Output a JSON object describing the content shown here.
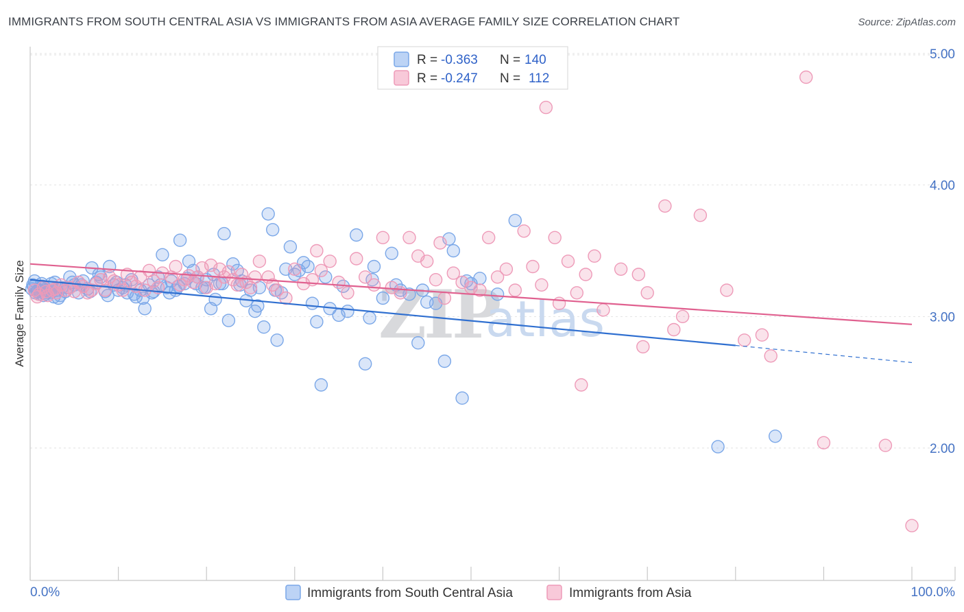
{
  "header": {
    "title": "IMMIGRANTS FROM SOUTH CENTRAL ASIA VS IMMIGRANTS FROM ASIA AVERAGE FAMILY SIZE CORRELATION CHART",
    "source": "Source: ZipAtlas.com"
  },
  "watermark": {
    "zip": "ZIP",
    "atlas": "atlas"
  },
  "chart_data": {
    "type": "scatter",
    "ylabel": "Average Family Size",
    "x_tick_labels": [
      "0.0%",
      "100.0%"
    ],
    "y_tick_labels": [
      "2.00",
      "3.00",
      "4.00",
      "5.00"
    ],
    "y_ticks": [
      2,
      3,
      4,
      5
    ],
    "xlim": [
      0,
      100
    ],
    "ylim": [
      1.0,
      5.1
    ],
    "grid": true,
    "legend_position": "top-center",
    "series": [
      {
        "name": "Immigrants from South Central Asia",
        "color": "#7aa7e8",
        "line_color": "#2f6fd0",
        "R": "-0.363",
        "N": "140",
        "trend": {
          "x0": 0,
          "y0": 3.28,
          "x1": 80,
          "y1": 2.78,
          "dash_to_x": 100,
          "dash_to_y": 2.65
        },
        "points": [
          [
            0.3,
            3.24
          ],
          [
            0.6,
            3.18
          ],
          [
            0.9,
            3.2
          ],
          [
            1.2,
            3.22
          ],
          [
            1.5,
            3.16
          ],
          [
            1.8,
            3.21
          ],
          [
            2.1,
            3.19
          ],
          [
            2.4,
            3.25
          ],
          [
            2.7,
            3.15
          ],
          [
            3.0,
            3.2
          ],
          [
            0.5,
            3.27
          ],
          [
            1.0,
            3.17
          ],
          [
            1.4,
            3.23
          ],
          [
            1.9,
            3.2
          ],
          [
            2.3,
            3.18
          ],
          [
            2.8,
            3.26
          ],
          [
            3.2,
            3.14
          ],
          [
            3.6,
            3.22
          ],
          [
            4.0,
            3.19
          ],
          [
            4.5,
            3.3
          ],
          [
            5.0,
            3.24
          ],
          [
            5.5,
            3.18
          ],
          [
            6.0,
            3.27
          ],
          [
            6.5,
            3.21
          ],
          [
            7.0,
            3.37
          ],
          [
            7.5,
            3.26
          ],
          [
            8.0,
            3.3
          ],
          [
            8.5,
            3.19
          ],
          [
            9.0,
            3.38
          ],
          [
            9.5,
            3.24
          ],
          [
            10.0,
            3.2
          ],
          [
            10.5,
            3.22
          ],
          [
            11.0,
            3.18
          ],
          [
            11.5,
            3.28
          ],
          [
            12.0,
            3.15
          ],
          [
            12.5,
            3.2
          ],
          [
            13.0,
            3.06
          ],
          [
            13.5,
            3.24
          ],
          [
            14.0,
            3.19
          ],
          [
            14.5,
            3.3
          ],
          [
            15.0,
            3.47
          ],
          [
            15.5,
            3.22
          ],
          [
            16.0,
            3.27
          ],
          [
            16.5,
            3.2
          ],
          [
            17.0,
            3.58
          ],
          [
            17.5,
            3.25
          ],
          [
            18.0,
            3.42
          ],
          [
            18.5,
            3.35
          ],
          [
            19.0,
            3.3
          ],
          [
            19.5,
            3.22
          ],
          [
            20.0,
            3.28
          ],
          [
            20.5,
            3.06
          ],
          [
            21.0,
            3.13
          ],
          [
            21.5,
            3.25
          ],
          [
            22.0,
            3.63
          ],
          [
            22.5,
            2.97
          ],
          [
            23.0,
            3.4
          ],
          [
            23.5,
            3.35
          ],
          [
            24.0,
            3.27
          ],
          [
            24.5,
            3.12
          ],
          [
            25.0,
            3.2
          ],
          [
            25.5,
            3.04
          ],
          [
            26.0,
            3.22
          ],
          [
            26.5,
            2.92
          ],
          [
            27.0,
            3.78
          ],
          [
            27.5,
            3.66
          ],
          [
            28.0,
            2.82
          ],
          [
            28.5,
            3.18
          ],
          [
            29.0,
            3.36
          ],
          [
            29.5,
            3.53
          ],
          [
            30.0,
            3.32
          ],
          [
            31.0,
            3.41
          ],
          [
            32.0,
            3.1
          ],
          [
            32.5,
            2.96
          ],
          [
            33.0,
            2.48
          ],
          [
            34.0,
            3.06
          ],
          [
            35.0,
            3.01
          ],
          [
            36.0,
            3.04
          ],
          [
            37.0,
            3.62
          ],
          [
            38.0,
            2.64
          ],
          [
            38.5,
            2.99
          ],
          [
            39.0,
            3.38
          ],
          [
            40.0,
            3.14
          ],
          [
            41.0,
            3.48
          ],
          [
            42.0,
            3.2
          ],
          [
            43.0,
            3.17
          ],
          [
            44.0,
            2.8
          ],
          [
            44.5,
            3.2
          ],
          [
            45.0,
            3.11
          ],
          [
            46.0,
            3.1
          ],
          [
            47.0,
            2.66
          ],
          [
            47.5,
            3.59
          ],
          [
            48.0,
            3.5
          ],
          [
            49.0,
            2.38
          ],
          [
            49.5,
            3.27
          ],
          [
            50.0,
            3.25
          ],
          [
            51.0,
            3.29
          ],
          [
            53.0,
            3.17
          ],
          [
            55.0,
            3.73
          ],
          [
            0.2,
            3.21
          ],
          [
            0.8,
            3.19
          ],
          [
            1.3,
            3.25
          ],
          [
            1.7,
            3.17
          ],
          [
            2.2,
            3.22
          ],
          [
            2.6,
            3.2
          ],
          [
            3.4,
            3.16
          ],
          [
            4.2,
            3.22
          ],
          [
            4.8,
            3.26
          ],
          [
            5.8,
            3.24
          ],
          [
            6.8,
            3.19
          ],
          [
            7.8,
            3.32
          ],
          [
            8.8,
            3.16
          ],
          [
            9.8,
            3.26
          ],
          [
            10.8,
            3.24
          ],
          [
            11.8,
            3.17
          ],
          [
            12.8,
            3.14
          ],
          [
            13.8,
            3.18
          ],
          [
            14.8,
            3.24
          ],
          [
            15.8,
            3.18
          ],
          [
            16.8,
            3.23
          ],
          [
            17.8,
            3.29
          ],
          [
            18.8,
            3.25
          ],
          [
            19.8,
            3.22
          ],
          [
            20.8,
            3.32
          ],
          [
            21.8,
            3.25
          ],
          [
            23.8,
            3.24
          ],
          [
            25.8,
            3.08
          ],
          [
            27.8,
            3.2
          ],
          [
            30.5,
            3.35
          ],
          [
            31.5,
            3.38
          ],
          [
            33.5,
            3.3
          ],
          [
            35.5,
            3.23
          ],
          [
            38.8,
            3.28
          ],
          [
            41.5,
            3.24
          ],
          [
            78.0,
            2.01
          ],
          [
            84.5,
            2.09
          ],
          [
            0.4,
            3.23
          ],
          [
            1.1,
            3.2
          ],
          [
            1.6,
            3.18
          ]
        ]
      },
      {
        "name": "Immigrants from Asia",
        "color": "#ee9ab8",
        "line_color": "#e0608f",
        "R": "-0.247",
        "N": "112",
        "trend": {
          "x0": 0,
          "y0": 3.4,
          "x1": 100,
          "y1": 2.94
        },
        "points": [
          [
            0.5,
            3.2
          ],
          [
            1.0,
            3.17
          ],
          [
            1.5,
            3.22
          ],
          [
            2.0,
            3.16
          ],
          [
            2.5,
            3.2
          ],
          [
            3.0,
            3.18
          ],
          [
            3.5,
            3.24
          ],
          [
            4.0,
            3.2
          ],
          [
            4.5,
            3.22
          ],
          [
            5.0,
            3.19
          ],
          [
            5.5,
            3.26
          ],
          [
            6.0,
            3.23
          ],
          [
            6.5,
            3.18
          ],
          [
            7.0,
            3.2
          ],
          [
            7.5,
            3.25
          ],
          [
            8.0,
            3.28
          ],
          [
            8.5,
            3.2
          ],
          [
            9.0,
            3.3
          ],
          [
            9.5,
            3.27
          ],
          [
            10.0,
            3.24
          ],
          [
            10.5,
            3.2
          ],
          [
            11.0,
            3.32
          ],
          [
            11.5,
            3.26
          ],
          [
            12.0,
            3.23
          ],
          [
            12.5,
            3.3
          ],
          [
            13.0,
            3.2
          ],
          [
            13.5,
            3.35
          ],
          [
            14.0,
            3.27
          ],
          [
            14.5,
            3.22
          ],
          [
            15.0,
            3.33
          ],
          [
            16.0,
            3.3
          ],
          [
            16.5,
            3.38
          ],
          [
            17.0,
            3.24
          ],
          [
            17.5,
            3.28
          ],
          [
            18.0,
            3.31
          ],
          [
            18.5,
            3.26
          ],
          [
            19.0,
            3.3
          ],
          [
            19.5,
            3.37
          ],
          [
            20.0,
            3.22
          ],
          [
            20.5,
            3.39
          ],
          [
            21.0,
            3.25
          ],
          [
            21.5,
            3.36
          ],
          [
            22.0,
            3.3
          ],
          [
            22.5,
            3.34
          ],
          [
            23.0,
            3.28
          ],
          [
            23.5,
            3.24
          ],
          [
            24.0,
            3.32
          ],
          [
            24.5,
            3.26
          ],
          [
            25.0,
            3.22
          ],
          [
            25.5,
            3.3
          ],
          [
            26.0,
            3.42
          ],
          [
            27.0,
            3.3
          ],
          [
            27.5,
            3.24
          ],
          [
            28.0,
            3.2
          ],
          [
            29.0,
            3.14
          ],
          [
            30.0,
            3.36
          ],
          [
            31.0,
            3.25
          ],
          [
            32.0,
            3.28
          ],
          [
            32.5,
            3.5
          ],
          [
            33.0,
            3.35
          ],
          [
            34.0,
            3.42
          ],
          [
            35.0,
            3.26
          ],
          [
            36.0,
            3.18
          ],
          [
            37.0,
            3.44
          ],
          [
            38.0,
            3.3
          ],
          [
            39.0,
            3.24
          ],
          [
            40.0,
            3.6
          ],
          [
            41.0,
            3.22
          ],
          [
            42.0,
            3.18
          ],
          [
            43.0,
            3.6
          ],
          [
            44.0,
            3.46
          ],
          [
            45.0,
            3.42
          ],
          [
            46.0,
            3.28
          ],
          [
            46.5,
            3.56
          ],
          [
            47.0,
            3.14
          ],
          [
            48.0,
            3.33
          ],
          [
            49.0,
            3.26
          ],
          [
            50.0,
            3.22
          ],
          [
            51.0,
            3.2
          ],
          [
            52.0,
            3.6
          ],
          [
            53.0,
            3.3
          ],
          [
            54.0,
            3.36
          ],
          [
            55.0,
            3.2
          ],
          [
            56.0,
            3.65
          ],
          [
            57.0,
            3.38
          ],
          [
            58.0,
            3.24
          ],
          [
            58.5,
            4.59
          ],
          [
            59.5,
            3.6
          ],
          [
            60.0,
            3.1
          ],
          [
            61.0,
            3.42
          ],
          [
            62.0,
            3.18
          ],
          [
            63.0,
            3.32
          ],
          [
            64.0,
            3.46
          ],
          [
            65.0,
            3.05
          ],
          [
            67.0,
            3.36
          ],
          [
            69.0,
            3.32
          ],
          [
            70.0,
            3.18
          ],
          [
            72.0,
            3.84
          ],
          [
            73.0,
            2.9
          ],
          [
            74.0,
            3.0
          ],
          [
            76.0,
            3.77
          ],
          [
            79.0,
            3.2
          ],
          [
            81.0,
            2.82
          ],
          [
            83.0,
            2.86
          ],
          [
            84.0,
            2.7
          ],
          [
            88.0,
            4.82
          ],
          [
            90.0,
            2.04
          ],
          [
            97.0,
            2.02
          ],
          [
            100.0,
            1.41
          ],
          [
            62.5,
            2.48
          ],
          [
            69.5,
            2.77
          ],
          [
            0.8,
            3.15
          ],
          [
            1.8,
            3.19
          ],
          [
            2.8,
            3.21
          ]
        ]
      }
    ]
  }
}
